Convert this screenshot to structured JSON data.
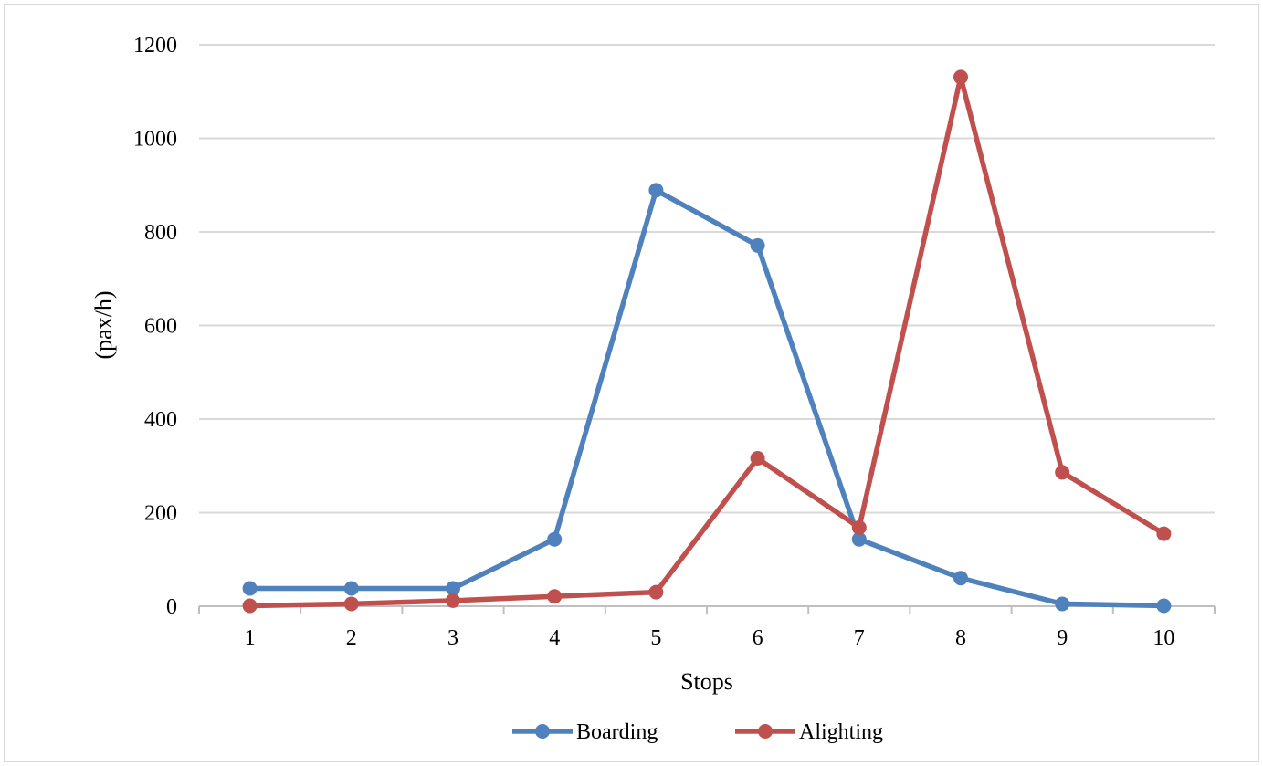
{
  "chart_data": {
    "type": "line",
    "title": "",
    "xlabel": "Stops",
    "ylabel": "(pax/h)",
    "categories": [
      "1",
      "2",
      "3",
      "4",
      "5",
      "6",
      "7",
      "8",
      "9",
      "10"
    ],
    "ylim": [
      0,
      1200
    ],
    "yticks": [
      0,
      200,
      400,
      600,
      800,
      1000,
      1200
    ],
    "grid": true,
    "legend_position": "bottom",
    "series": [
      {
        "name": "Boarding",
        "color": "#4f81bd",
        "values": [
          38,
          38,
          38,
          143,
          889,
          771,
          143,
          60,
          5,
          1
        ]
      },
      {
        "name": "Alighting",
        "color": "#c0504d",
        "values": [
          1,
          5,
          12,
          21,
          30,
          316,
          168,
          1131,
          286,
          155
        ]
      }
    ]
  }
}
